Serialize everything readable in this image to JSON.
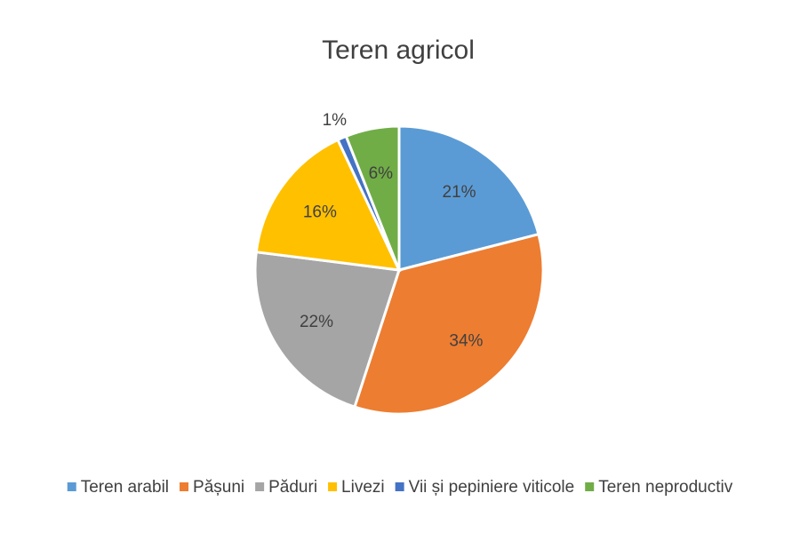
{
  "chart_data": {
    "type": "pie",
    "title": "Teren agricol",
    "categories": [
      "Teren arabil",
      "Pășuni",
      "Păduri",
      "Livezi",
      "Vii și pepiniere viticole",
      "Teren neproductiv"
    ],
    "values": [
      21,
      34,
      22,
      16,
      1,
      6
    ],
    "value_labels": [
      "21%",
      "34%",
      "22%",
      "16%",
      "1%",
      "6%"
    ],
    "colors": [
      "#5b9bd5",
      "#ed7d31",
      "#a5a5a5",
      "#ffc000",
      "#4472c4",
      "#70ad47"
    ],
    "legend": "bottom"
  }
}
